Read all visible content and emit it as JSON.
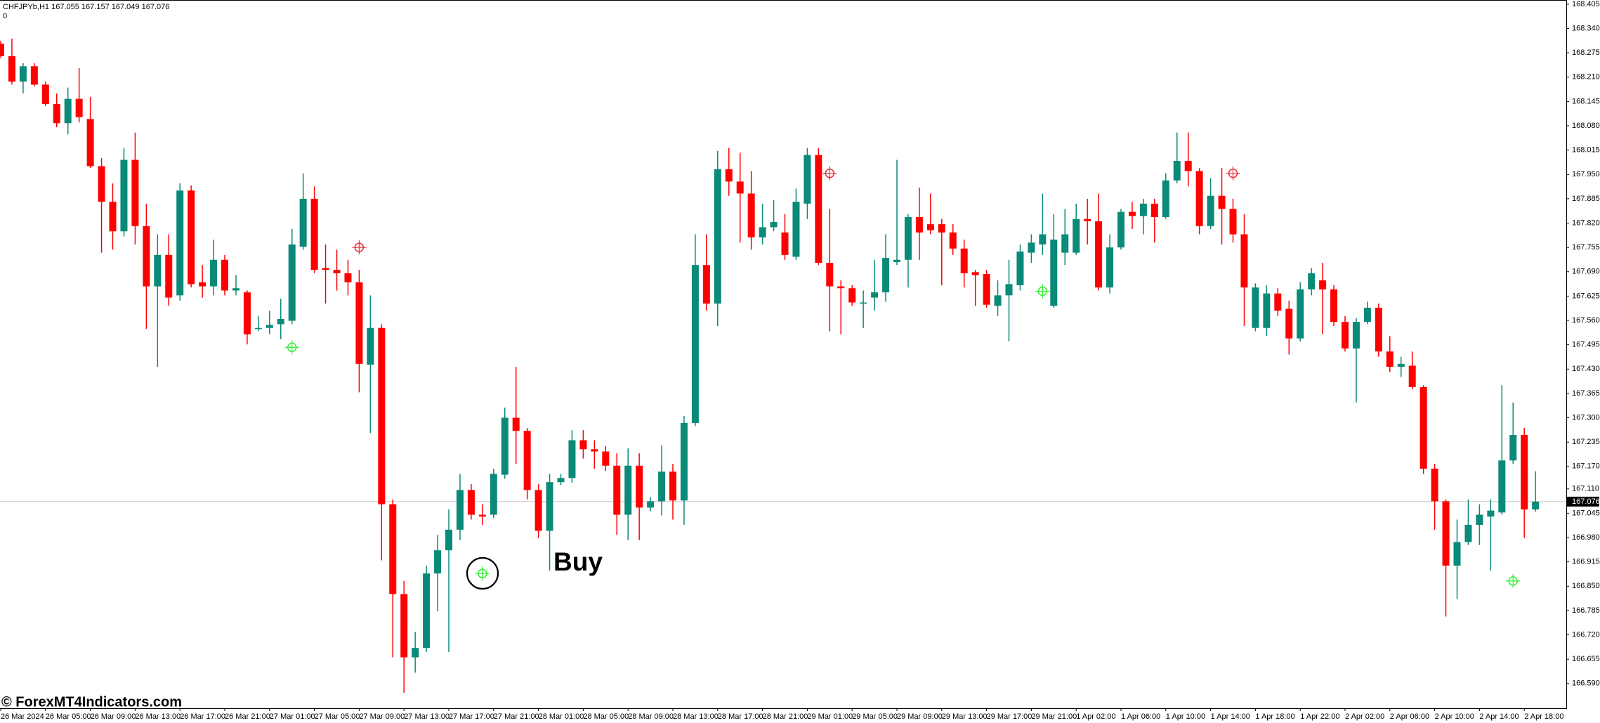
{
  "chart_data": {
    "type": "candlestick",
    "symbol": "CHFJPYb,H1",
    "indicator_label": "0",
    "annotation": "Buy",
    "watermark": "© ForexMT4Indicators.com",
    "categories": [
      "26 Mar 2024",
      null,
      null,
      null,
      "26 Mar 05:00",
      null,
      null,
      null,
      "26 Mar 09:00",
      null,
      null,
      null,
      "26 Mar 13:00",
      null,
      null,
      null,
      "26 Mar 17:00",
      null,
      null,
      null,
      "26 Mar 21:00",
      null,
      null,
      null,
      "27 Mar 01:00",
      null,
      null,
      null,
      "27 Mar 05:00",
      null,
      null,
      null,
      "27 Mar 09:00",
      null,
      null,
      null,
      "27 Mar 13:00",
      null,
      null,
      null,
      "27 Mar 17:00",
      null,
      null,
      null,
      "27 Mar 21:00",
      null,
      null,
      null,
      "28 Mar 01:00",
      null,
      null,
      null,
      "28 Mar 05:00",
      null,
      null,
      null,
      "28 Mar 09:00",
      null,
      null,
      null,
      "28 Mar 13:00",
      null,
      null,
      null,
      "28 Mar 17:00",
      null,
      null,
      null,
      "28 Mar 21:00",
      null,
      null,
      null,
      "29 Mar 01:00",
      null,
      null,
      null,
      "29 Mar 05:00",
      null,
      null,
      null,
      "29 Mar 09:00",
      null,
      null,
      null,
      "29 Mar 13:00",
      null,
      null,
      null,
      "29 Mar 17:00",
      null,
      null,
      null,
      "29 Mar 21:00",
      null,
      null,
      null,
      "1 Apr 02:00",
      null,
      null,
      null,
      "1 Apr 06:00",
      null,
      null,
      null,
      "1 Apr 10:00",
      null,
      null,
      null,
      "1 Apr 14:00",
      null,
      null,
      null,
      "1 Apr 18:00",
      null,
      null,
      null,
      "1 Apr 22:00",
      null,
      null,
      null,
      "2 Apr 02:00",
      null,
      null,
      null,
      "2 Apr 06:00",
      null,
      null,
      null,
      "2 Apr 10:00",
      null,
      null,
      null,
      "2 Apr 14:00",
      null,
      null,
      null,
      "2 Apr 18:00",
      null
    ],
    "open": [
      168.299,
      168.266,
      168.198,
      168.239,
      168.19,
      168.138,
      168.087,
      168.152,
      168.098,
      167.972,
      167.877,
      167.798,
      167.989,
      167.812,
      167.651,
      167.735,
      167.627,
      167.907,
      167.662,
      167.651,
      167.722,
      167.64,
      167.635,
      167.537,
      167.54,
      167.55,
      167.559,
      167.757,
      167.885,
      167.7,
      167.695,
      167.686,
      167.662,
      167.442,
      167.54,
      167.069,
      166.829,
      166.66,
      166.685,
      166.884,
      166.946,
      167.001,
      167.107,
      167.041,
      167.041,
      167.148,
      167.3,
      167.265,
      167.107,
      166.998,
      167.128,
      167.139,
      167.24,
      167.216,
      167.21,
      167.172,
      167.041,
      167.172,
      167.06,
      167.077,
      167.156,
      167.079,
      167.286,
      167.708,
      167.605,
      167.964,
      167.931,
      167.899,
      167.782,
      167.809,
      167.795,
      167.73,
      167.872,
      168.002,
      167.714,
      167.651,
      167.646,
      167.605,
      167.621,
      167.635,
      167.716,
      167.722,
      167.836,
      167.817,
      167.817,
      167.795,
      167.752,
      167.689,
      167.684,
      167.599,
      167.627,
      167.654,
      167.741,
      167.763,
      167.599,
      167.741,
      167.741,
      167.831,
      167.825,
      167.648,
      167.755,
      167.85,
      167.839,
      167.872,
      167.836,
      167.934,
      167.986,
      167.959,
      167.812,
      167.893,
      167.858,
      167.79,
      167.54,
      167.54,
      167.632,
      167.591,
      167.512,
      167.643,
      167.667,
      167.643,
      167.556,
      167.485,
      167.556,
      167.594,
      167.477,
      167.436,
      167.439,
      167.382,
      167.164,
      167.077,
      166.905,
      166.968,
      167.014,
      167.036,
      167.047,
      167.186,
      167.254,
      167.055
    ],
    "high": [
      168.307,
      168.313,
      168.247,
      168.247,
      168.198,
      168.166,
      168.182,
      168.234,
      168.157,
      167.994,
      167.926,
      168.021,
      168.062,
      167.872,
      167.79,
      167.79,
      167.926,
      167.921,
      167.708,
      167.776,
      167.735,
      167.681,
      167.64,
      167.572,
      167.586,
      167.618,
      167.804,
      167.953,
      167.918,
      167.763,
      167.749,
      167.722,
      167.695,
      167.627,
      167.55,
      167.082,
      166.864,
      166.728,
      166.905,
      166.987,
      167.055,
      167.15,
      167.123,
      167.069,
      167.164,
      167.327,
      167.436,
      167.273,
      167.123,
      167.15,
      167.15,
      167.267,
      167.267,
      167.24,
      167.224,
      167.205,
      167.218,
      167.205,
      167.088,
      167.226,
      167.177,
      167.305,
      167.79,
      167.79,
      168.013,
      168.021,
      168.008,
      167.959,
      167.872,
      167.882,
      167.844,
      167.912,
      168.021,
      168.021,
      167.858,
      167.667,
      167.654,
      167.64,
      167.722,
      167.79,
      167.989,
      167.844,
      167.915,
      167.899,
      167.831,
      167.817,
      167.776,
      167.695,
      167.695,
      167.667,
      167.722,
      167.763,
      167.79,
      167.899,
      167.844,
      167.858,
      167.872,
      167.885,
      167.899,
      167.79,
      167.858,
      167.877,
      167.885,
      167.885,
      167.953,
      168.062,
      168.062,
      167.967,
      167.94,
      167.967,
      167.885,
      167.844,
      167.659,
      167.654,
      167.646,
      167.613,
      167.662,
      167.7,
      167.714,
      167.654,
      167.572,
      167.567,
      167.61,
      167.605,
      167.518,
      167.463,
      167.477,
      167.387,
      167.177,
      167.082,
      167.028,
      167.082,
      167.069,
      167.082,
      167.387,
      167.341,
      167.273,
      167.157
    ],
    "low": [
      168.261,
      168.19,
      168.166,
      168.185,
      168.133,
      168.076,
      168.057,
      168.089,
      167.967,
      167.741,
      167.749,
      167.784,
      167.763,
      167.537,
      167.436,
      167.599,
      167.613,
      167.648,
      167.621,
      167.627,
      167.627,
      167.627,
      167.496,
      167.531,
      167.523,
      167.51,
      167.55,
      167.749,
      167.686,
      167.605,
      167.64,
      167.627,
      167.368,
      167.259,
      166.919,
      166.66,
      166.565,
      166.619,
      166.674,
      166.783,
      166.674,
      166.973,
      167.028,
      167.014,
      167.033,
      167.137,
      167.177,
      167.082,
      166.979,
      166.892,
      167.12,
      167.126,
      167.191,
      167.164,
      167.158,
      166.987,
      166.973,
      166.973,
      167.05,
      167.039,
      167.028,
      167.014,
      167.278,
      167.586,
      167.545,
      167.893,
      167.768,
      167.749,
      167.763,
      167.798,
      167.722,
      167.722,
      167.831,
      167.708,
      167.531,
      167.523,
      167.599,
      167.54,
      167.586,
      167.61,
      167.708,
      167.648,
      167.722,
      167.79,
      167.654,
      167.735,
      167.648,
      167.599,
      167.594,
      167.572,
      167.504,
      167.64,
      167.714,
      167.735,
      167.594,
      167.708,
      167.735,
      167.763,
      167.64,
      167.632,
      167.749,
      167.804,
      167.79,
      167.768,
      167.831,
      167.926,
      167.918,
      167.79,
      167.804,
      167.763,
      167.768,
      167.545,
      167.531,
      167.518,
      167.572,
      167.469,
      167.504,
      167.627,
      167.523,
      167.545,
      167.477,
      167.341,
      167.55,
      167.463,
      167.422,
      167.409,
      167.376,
      167.15,
      167.001,
      166.769,
      166.815,
      166.96,
      166.96,
      166.892,
      167.041,
      167.177,
      166.979,
      167.049
    ],
    "close": [
      168.266,
      168.198,
      168.239,
      168.19,
      168.138,
      168.087,
      168.152,
      168.103,
      167.972,
      167.877,
      167.798,
      167.989,
      167.812,
      167.651,
      167.735,
      167.621,
      167.907,
      167.657,
      167.651,
      167.722,
      167.64,
      167.646,
      167.523,
      167.54,
      167.548,
      167.564,
      167.763,
      167.885,
      167.695,
      167.695,
      167.686,
      167.662,
      167.444,
      167.54,
      167.069,
      166.829,
      166.66,
      166.685,
      166.884,
      166.946,
      167.001,
      167.107,
      167.041,
      167.036,
      167.15,
      167.3,
      167.265,
      167.107,
      166.998,
      167.128,
      167.139,
      167.24,
      167.216,
      167.21,
      167.172,
      167.041,
      167.172,
      167.06,
      167.077,
      167.156,
      167.079,
      167.286,
      167.708,
      167.605,
      167.964,
      167.931,
      167.899,
      167.782,
      167.809,
      167.823,
      167.735,
      167.877,
      168.002,
      167.714,
      167.651,
      167.646,
      167.608,
      167.608,
      167.635,
      167.727,
      167.722,
      167.836,
      167.795,
      167.801,
      167.795,
      167.752,
      167.686,
      167.681,
      167.602,
      167.627,
      167.657,
      167.744,
      167.768,
      167.79,
      167.776,
      167.79,
      167.831,
      167.825,
      167.648,
      167.755,
      167.85,
      167.839,
      167.872,
      167.836,
      167.934,
      167.986,
      167.959,
      167.812,
      167.893,
      167.858,
      167.79,
      167.648,
      167.648,
      167.632,
      167.586,
      167.512,
      167.643,
      167.686,
      167.643,
      167.556,
      167.485,
      167.556,
      167.594,
      167.477,
      167.436,
      167.444,
      167.382,
      167.164,
      167.077,
      166.905,
      166.968,
      167.014,
      167.041,
      167.052,
      167.186,
      167.254,
      167.055,
      167.076
    ],
    "buy_signals": [
      null,
      null,
      null,
      null,
      null,
      null,
      null,
      null,
      null,
      null,
      null,
      null,
      null,
      null,
      null,
      null,
      null,
      null,
      null,
      null,
      null,
      null,
      null,
      null,
      null,
      null,
      167.488,
      null,
      null,
      null,
      null,
      null,
      null,
      null,
      null,
      null,
      null,
      null,
      null,
      null,
      null,
      null,
      null,
      166.884,
      null,
      null,
      null,
      null,
      null,
      null,
      null,
      null,
      null,
      null,
      null,
      null,
      null,
      null,
      null,
      null,
      null,
      null,
      null,
      null,
      null,
      null,
      null,
      null,
      null,
      null,
      null,
      null,
      null,
      null,
      null,
      null,
      null,
      null,
      null,
      null,
      null,
      null,
      null,
      null,
      null,
      null,
      null,
      null,
      null,
      null,
      null,
      null,
      null,
      167.638,
      null,
      null,
      null,
      null,
      null,
      null,
      null,
      null,
      null,
      null,
      null,
      null,
      null,
      null,
      null,
      null,
      null,
      null,
      null,
      null,
      null,
      null,
      null,
      null,
      null,
      null,
      null,
      null,
      null,
      null,
      null,
      null,
      null,
      null,
      null,
      null,
      null,
      null,
      null,
      null,
      null,
      166.864,
      null,
      null
    ],
    "sell_signals": [
      null,
      null,
      null,
      null,
      null,
      null,
      null,
      null,
      null,
      null,
      null,
      null,
      null,
      null,
      null,
      null,
      null,
      null,
      null,
      null,
      null,
      null,
      null,
      null,
      null,
      null,
      null,
      null,
      null,
      null,
      null,
      null,
      167.755,
      null,
      null,
      null,
      null,
      null,
      null,
      null,
      null,
      null,
      null,
      null,
      null,
      null,
      null,
      null,
      null,
      null,
      null,
      null,
      null,
      null,
      null,
      null,
      null,
      null,
      null,
      null,
      null,
      null,
      null,
      null,
      null,
      null,
      null,
      null,
      null,
      null,
      null,
      null,
      null,
      null,
      167.953,
      null,
      null,
      null,
      null,
      null,
      null,
      null,
      null,
      null,
      null,
      null,
      null,
      null,
      null,
      null,
      null,
      null,
      null,
      null,
      null,
      null,
      null,
      null,
      null,
      null,
      null,
      null,
      null,
      null,
      null,
      null,
      null,
      null,
      null,
      null,
      167.953,
      null,
      null,
      null,
      null,
      null,
      null,
      null,
      null,
      null,
      null,
      null,
      null,
      null,
      null,
      null,
      null,
      null,
      null,
      null,
      null,
      null,
      null,
      null,
      null,
      null,
      null,
      null
    ],
    "up_color": "#0a8a78",
    "down_color": "#ff0000",
    "buy_color": "#33ee33",
    "sell_color": "#e8303a",
    "ylim": [
      166.524,
      168.416
    ],
    "yticks": [
      168.405,
      {
        "value": 168.34,
        "label": "168.340"
      },
      168.275,
      {
        "value": 168.21,
        "label": "168.210"
      },
      168.145,
      {
        "value": 168.08,
        "label": "168.080"
      },
      168.015,
      {
        "value": 167.95,
        "label": "167.950"
      },
      167.885,
      {
        "value": 167.82,
        "label": "167.820"
      },
      167.755,
      {
        "value": 167.69,
        "label": "167.690"
      },
      167.625,
      {
        "value": 167.56,
        "label": "167.560"
      },
      167.495,
      {
        "value": 167.43,
        "label": "167.430"
      },
      167.365,
      {
        "value": 167.3,
        "label": "167.300"
      },
      167.235,
      {
        "value": 167.17,
        "label": "167.170"
      },
      {
        "value": 167.11,
        "label": "167.110"
      },
      167.045,
      {
        "value": 166.98,
        "label": "166.980"
      },
      166.915,
      {
        "value": 166.85,
        "label": "166.850"
      },
      166.785,
      {
        "value": 166.72,
        "label": "166.720"
      },
      166.655,
      {
        "value": 166.59,
        "label": "166.590"
      }
    ],
    "current_price_line": true,
    "grid": false
  }
}
